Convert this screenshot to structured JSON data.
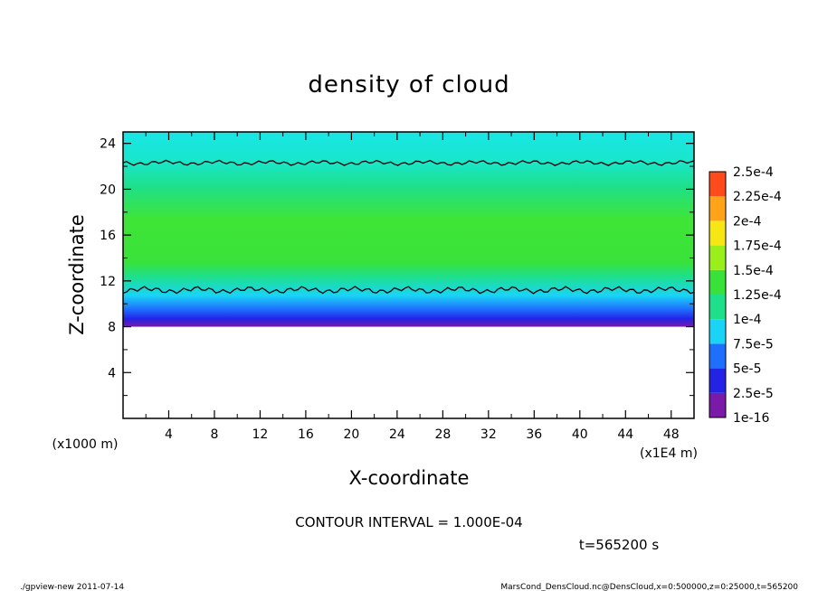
{
  "chart_data": {
    "type": "heatmap",
    "title": "density of cloud",
    "xlabel": "X-coordinate",
    "ylabel": "Z-coordinate",
    "x_unit_label": "(x1E4 m)",
    "y_unit_label": "(x1000 m)",
    "xlim": [
      0,
      50
    ],
    "ylim": [
      0,
      25
    ],
    "x_ticks": [
      4,
      8,
      12,
      16,
      20,
      24,
      28,
      32,
      36,
      40,
      44,
      48
    ],
    "y_ticks": [
      4,
      8,
      12,
      16,
      20,
      24
    ],
    "contour_interval_text": "CONTOUR INTERVAL = 1.000E-04",
    "time_text": "t=565200 s",
    "cloud_layer": {
      "bottom_z": 8,
      "lower_contour_z": 11.2,
      "upper_contour_z": 22.3,
      "top_z": 25
    },
    "colorbar": {
      "labels": [
        "1e-16",
        "2.5e-5",
        "5e-5",
        "7.5e-5",
        "1e-4",
        "1.25e-4",
        "1.5e-4",
        "1.75e-4",
        "2e-4",
        "2.25e-4",
        "2.5e-4"
      ],
      "colors": [
        "#7a1aa8",
        "#2323e6",
        "#1f6fff",
        "#19d4f5",
        "#1ee08a",
        "#39e23a",
        "#9aee1a",
        "#f5e614",
        "#ffa318",
        "#ff4a1a",
        "#ff8a8a"
      ]
    }
  },
  "footer": {
    "left": "./gpview-new  2011-07-14",
    "right": "MarsCond_DensCloud.nc@DensCloud,x=0:500000,z=0:25000,t=565200"
  }
}
